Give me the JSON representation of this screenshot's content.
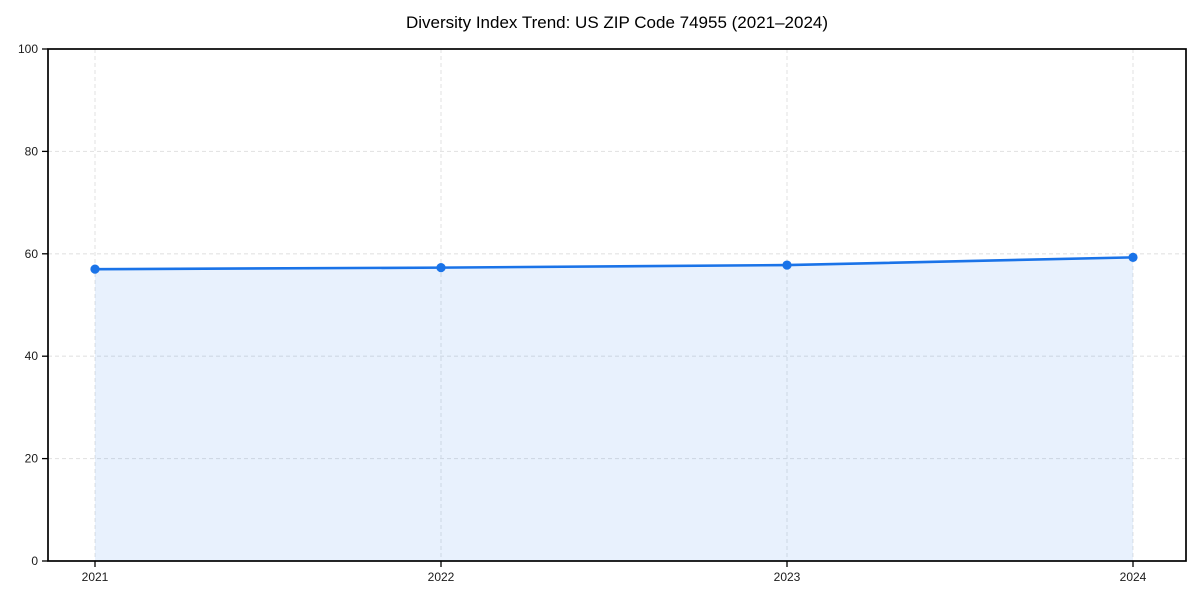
{
  "chart_data": {
    "type": "area",
    "title": "Diversity Index Trend: US ZIP Code 74955 (2021–2024)",
    "series_name": "Diversity Index",
    "categories": [
      "2021",
      "2022",
      "2023",
      "2024"
    ],
    "values": [
      57.0,
      57.3,
      57.8,
      59.3
    ],
    "xlabel": "",
    "ylabel": "",
    "ylim": [
      0,
      100
    ],
    "yticks": [
      0,
      20,
      40,
      60,
      80,
      100
    ],
    "grid": true,
    "grid_style": "dashed",
    "legend": "none",
    "colors": {
      "line": "#1a73e8",
      "marker": "#1a73e8",
      "area_fill": "#1a73e8",
      "area_opacity": 0.1,
      "grid": "#e4e4e4",
      "spine": "#000000",
      "tick_label": "#1a1a1a",
      "title": "#000000",
      "background": "#ffffff"
    }
  }
}
